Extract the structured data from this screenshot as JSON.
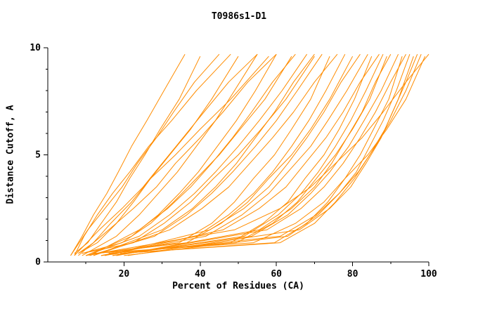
{
  "figure": {
    "background": "#ffffff",
    "text_color": "#000000"
  },
  "chart_data": {
    "type": "line",
    "title": "T0986s1-D1",
    "xlabel": "Percent of Residues (CA)",
    "ylabel": "Distance Cutoff, A",
    "xlim": [
      0,
      100
    ],
    "ylim": [
      0,
      10
    ],
    "x_axis": {
      "major_ticks": [
        20,
        40,
        60,
        80,
        100
      ],
      "minor_tick_step": 10
    },
    "y_axis": {
      "major_ticks": [
        0,
        5,
        10
      ],
      "minor_tick_step": 1
    },
    "grid": false,
    "legend": "none",
    "line_color": "#ff8c00",
    "y_grids": {
      "a": [
        0.3,
        1.2,
        2.2,
        3.2,
        4.2,
        5.4,
        6.6,
        8.0,
        9.7
      ],
      "b": [
        0.4,
        0.9,
        1.8,
        2.8,
        3.9,
        5.0,
        6.2,
        7.6,
        9.6
      ],
      "c": [
        0.3,
        1.5,
        2.5,
        3.5,
        4.6,
        5.8,
        7.0,
        8.4,
        9.7
      ]
    },
    "series": [
      {
        "grid": "a",
        "x": [
          6,
          9,
          12,
          15.5,
          18.5,
          22,
          26,
          30.5,
          36
        ]
      },
      {
        "grid": "b",
        "x": [
          7,
          10.5,
          14,
          18,
          21.5,
          25.5,
          29.5,
          34.5,
          40
        ]
      },
      {
        "grid": "c",
        "x": [
          6,
          10.5,
          15,
          19.5,
          23.5,
          28.5,
          33,
          38.5,
          45
        ]
      },
      {
        "grid": "a",
        "x": [
          7,
          9.5,
          13,
          17,
          21.5,
          26.5,
          32.5,
          39,
          48
        ]
      },
      {
        "grid": "b",
        "x": [
          8,
          13,
          18,
          22.5,
          27,
          32,
          37.5,
          43,
          50
        ]
      },
      {
        "grid": "c",
        "x": [
          7,
          13.5,
          19.5,
          25,
          30,
          35.5,
          41,
          47.5,
          55
        ]
      },
      {
        "grid": "a",
        "x": [
          9,
          18,
          24,
          29,
          34,
          39,
          44,
          49,
          55
        ]
      },
      {
        "grid": "b",
        "x": [
          8,
          12,
          16.5,
          22,
          27,
          33.5,
          40,
          48,
          58
        ]
      },
      {
        "grid": "c",
        "x": [
          8,
          16,
          22.5,
          28.5,
          33.5,
          40,
          46,
          52.5,
          60
        ]
      },
      {
        "grid": "a",
        "x": [
          10,
          22,
          29,
          34.5,
          39.5,
          44.5,
          49.5,
          54.5,
          60
        ]
      },
      {
        "grid": "b",
        "x": [
          9,
          19.5,
          27,
          33,
          39,
          45,
          50.5,
          57,
          64
        ]
      },
      {
        "grid": "c",
        "x": [
          11,
          24,
          31.5,
          37.5,
          43,
          48.5,
          53.5,
          59,
          65
        ]
      },
      {
        "grid": "a",
        "x": [
          10,
          24,
          32,
          38.5,
          44,
          50,
          55.5,
          61.5,
          68
        ]
      },
      {
        "grid": "b",
        "x": [
          9,
          22.5,
          30.5,
          37.5,
          43.5,
          50,
          56,
          62.5,
          70
        ]
      },
      {
        "grid": "c",
        "x": [
          12,
          30,
          38,
          44,
          49.5,
          54.5,
          59.5,
          64.5,
          70
        ]
      },
      {
        "grid": "a",
        "x": [
          11,
          28,
          36.5,
          43,
          48.5,
          54.5,
          60,
          65.5,
          72
        ]
      },
      {
        "grid": "b",
        "x": [
          13,
          34.5,
          43,
          49,
          54,
          59.5,
          64,
          69,
          74
        ]
      },
      {
        "grid": "c",
        "x": [
          12,
          32,
          40.5,
          47.5,
          53,
          59,
          64.5,
          70,
          76
        ]
      },
      {
        "grid": "a",
        "x": [
          14,
          39,
          47.5,
          54,
          59,
          64,
          68.5,
          73,
          78
        ]
      },
      {
        "grid": "b",
        "x": [
          13,
          36.5,
          45.5,
          52.5,
          58,
          64,
          69,
          74,
          80
        ]
      },
      {
        "grid": "c",
        "x": [
          15,
          42.5,
          51.5,
          58,
          63,
          68,
          72.5,
          77,
          82
        ]
      },
      {
        "grid": "a",
        "x": [
          14,
          41.5,
          51,
          58,
          63,
          69,
          73.5,
          78.5,
          84
        ]
      },
      {
        "grid": "b",
        "x": [
          16,
          48,
          56.5,
          63,
          67.5,
          72.5,
          76.5,
          80.5,
          85
        ]
      },
      {
        "grid": "c",
        "x": [
          15,
          46,
          55.5,
          62.5,
          67.5,
          73,
          77.5,
          82,
          87
        ]
      },
      {
        "grid": "a",
        "x": [
          17,
          51.5,
          60.5,
          66.5,
          71,
          75.5,
          79.5,
          83.5,
          88
        ]
      },
      {
        "grid": "b",
        "x": [
          16,
          49.5,
          59,
          65.5,
          70.5,
          75.5,
          80,
          84.5,
          89
        ]
      },
      {
        "grid": "c",
        "x": [
          18,
          55.5,
          64,
          70,
          74.5,
          78.5,
          82.5,
          86,
          90
        ]
      },
      {
        "grid": "a",
        "x": [
          17,
          53.5,
          63,
          69,
          74,
          79,
          83,
          87.5,
          92
        ]
      },
      {
        "grid": "b",
        "x": [
          19,
          59.5,
          68,
          73.5,
          78,
          82,
          85.5,
          89.5,
          93
        ]
      },
      {
        "grid": "c",
        "x": [
          18,
          57.5,
          66.5,
          72.5,
          77.5,
          82,
          86,
          90,
          94
        ]
      },
      {
        "grid": "a",
        "x": [
          20,
          63,
          71,
          76.5,
          81,
          84.5,
          88,
          91.5,
          95
        ]
      },
      {
        "grid": "b",
        "x": [
          19,
          61,
          70,
          75.5,
          80.5,
          84.5,
          88.5,
          92,
          96
        ]
      },
      {
        "grid": "c",
        "x": [
          21,
          66,
          74,
          79.5,
          83.5,
          87.5,
          90.5,
          94,
          97
        ]
      },
      {
        "grid": "a",
        "x": [
          14,
          61,
          70.5,
          76.5,
          81.5,
          86,
          90,
          94,
          98
        ]
      },
      {
        "grid": "b",
        "x": [
          12,
          54,
          65,
          72.5,
          78,
          84,
          89,
          94,
          99
        ]
      },
      {
        "grid": "c",
        "x": [
          10,
          49,
          61,
          69,
          75.5,
          82.5,
          88,
          94,
          100
        ]
      }
    ]
  }
}
